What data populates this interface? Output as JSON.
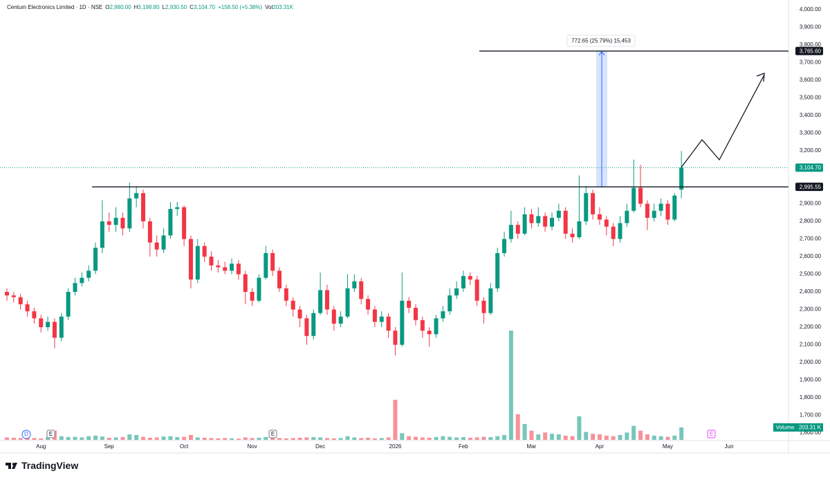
{
  "chart_data": {
    "type": "candlestick",
    "title": "Centum Electronics Limited · 1D · NSE",
    "ohlc_legend": [
      {
        "name": "O",
        "value": 2980,
        "label": "2,980.00"
      },
      {
        "name": "H",
        "value": 3198.8,
        "label": "3,198.80"
      },
      {
        "name": "L",
        "value": 2930.5,
        "label": "2,930.50"
      },
      {
        "name": "C",
        "value": 3104.7,
        "label": "3,104.70"
      }
    ],
    "change": {
      "value": 158.5,
      "label": "+158.50 (+5.38%)"
    },
    "volume_legend": {
      "name": "Vol",
      "value": 203.31,
      "label": "203.31K"
    },
    "volume_badge": {
      "name": "Volume",
      "value": 203.31,
      "label": "203.31 K"
    },
    "last_price": {
      "value": 3104.7,
      "label": "3,104.70"
    },
    "hlines": [
      {
        "value": 3765.6,
        "label": "3,765.60"
      },
      {
        "value": 2995.55,
        "label": "2,995.55"
      }
    ],
    "measure_label": "772.65 (25.79%) 15,453",
    "markers": [
      "D",
      "E",
      "E",
      "E"
    ],
    "brand": "TradingView",
    "up_color": "#089981",
    "down_color": "#f23645",
    "ylim": [
      1557,
      4055
    ],
    "yticks": [
      {
        "value": 4000,
        "label": "4,000.00"
      },
      {
        "value": 3900,
        "label": "3,900.00"
      },
      {
        "value": 3800,
        "label": "3,800.00"
      },
      {
        "value": 3700,
        "label": "3,700.00"
      },
      {
        "value": 3600,
        "label": "3,600.00"
      },
      {
        "value": 3500,
        "label": "3,500.00"
      },
      {
        "value": 3400,
        "label": "3,400.00"
      },
      {
        "value": 3300,
        "label": "3,300.00"
      },
      {
        "value": 3200,
        "label": "3,200.00"
      },
      {
        "value": 3100,
        "label": "3,100.00"
      },
      {
        "value": 3000,
        "label": "3,000.00"
      },
      {
        "value": 2900,
        "label": "2,900.00"
      },
      {
        "value": 2800,
        "label": "2,800.00"
      },
      {
        "value": 2700,
        "label": "2,700.00"
      },
      {
        "value": 2600,
        "label": "2,600.00"
      },
      {
        "value": 2500,
        "label": "2,500.00"
      },
      {
        "value": 2400,
        "label": "2,400.00"
      },
      {
        "value": 2300,
        "label": "2,300.00"
      },
      {
        "value": 2200,
        "label": "2,200.00"
      },
      {
        "value": 2100,
        "label": "2,100.00"
      },
      {
        "value": 2000,
        "label": "2,000.00"
      },
      {
        "value": 1900,
        "label": "1,900.00"
      },
      {
        "value": 1800,
        "label": "1,800.00"
      },
      {
        "value": 1700,
        "label": "1,700.00"
      },
      {
        "value": 1600,
        "label": "1,600.00"
      }
    ],
    "categories": [
      null,
      null,
      null,
      null,
      null,
      "Aug",
      null,
      null,
      null,
      null,
      null,
      null,
      null,
      null,
      null,
      "Sep",
      null,
      null,
      null,
      null,
      null,
      null,
      null,
      null,
      null,
      null,
      "Oct",
      null,
      null,
      null,
      null,
      null,
      null,
      null,
      null,
      null,
      "Nov",
      null,
      null,
      null,
      null,
      null,
      null,
      null,
      null,
      null,
      "Dec",
      null,
      null,
      null,
      null,
      null,
      null,
      null,
      null,
      null,
      null,
      "2026",
      null,
      null,
      null,
      null,
      null,
      null,
      null,
      null,
      null,
      "Feb",
      null,
      null,
      null,
      null,
      null,
      null,
      null,
      null,
      null,
      "Mar",
      null,
      null,
      null,
      null,
      null,
      null,
      null,
      null,
      null,
      "Apr",
      null,
      null,
      null,
      null,
      null,
      null,
      null,
      null,
      null,
      "May",
      null,
      null,
      null,
      null,
      null,
      null,
      null,
      null,
      "Jun",
      null
    ],
    "open": [
      2400,
      2380,
      2370,
      2330,
      2290,
      2250,
      2200,
      2230,
      2140,
      2260,
      2400,
      2450,
      2480,
      2520,
      2650,
      2800,
      2780,
      2820,
      2760,
      2930,
      2960,
      2800,
      2680,
      2640,
      2720,
      2870,
      2880,
      2700,
      2470,
      2660,
      2600,
      2550,
      2540,
      2520,
      2560,
      2500,
      2400,
      2350,
      2480,
      2620,
      2520,
      2420,
      2350,
      2300,
      2250,
      2150,
      2280,
      2410,
      2300,
      2220,
      2260,
      2420,
      2460,
      2360,
      2300,
      2230,
      2260,
      2180,
      2100,
      2350,
      2310,
      2240,
      2180,
      2160,
      2250,
      2290,
      2380,
      2420,
      2490,
      2470,
      2350,
      2280,
      2420,
      2620,
      2700,
      2780,
      2730,
      2840,
      2790,
      2830,
      2770,
      2820,
      2860,
      2730,
      2710,
      2800,
      2960,
      2840,
      2810,
      2770,
      2700,
      2790,
      2860,
      2990,
      2900,
      2820,
      2860,
      2900,
      2810,
      2980,
      null,
      null,
      null,
      null,
      null,
      null,
      null,
      null
    ],
    "high": [
      2420,
      2400,
      2390,
      2350,
      2310,
      2270,
      2260,
      2250,
      2280,
      2420,
      2480,
      2510,
      2550,
      2680,
      2920,
      2850,
      2880,
      2850,
      3020,
      3000,
      2980,
      2820,
      2720,
      2760,
      2910,
      2910,
      2890,
      2720,
      2700,
      2680,
      2630,
      2580,
      2570,
      2590,
      2580,
      2520,
      2420,
      2500,
      2660,
      2640,
      2540,
      2440,
      2370,
      2320,
      2270,
      2300,
      2510,
      2440,
      2320,
      2290,
      2500,
      2500,
      2480,
      2380,
      2320,
      2290,
      2280,
      2200,
      2510,
      2370,
      2330,
      2260,
      2200,
      2270,
      2320,
      2420,
      2460,
      2520,
      2510,
      2490,
      2370,
      2450,
      2650,
      2740,
      2860,
      2800,
      2880,
      2870,
      2880,
      2850,
      2850,
      2900,
      2880,
      2760,
      3060,
      3000,
      2980,
      2880,
      2830,
      2790,
      2830,
      2900,
      3150,
      3120,
      2920,
      2900,
      2930,
      2920,
      2960,
      3198.8,
      null,
      null,
      null,
      null,
      null,
      null,
      null,
      null
    ],
    "low": [
      2350,
      2340,
      2300,
      2260,
      2220,
      2170,
      2180,
      2080,
      2120,
      2240,
      2380,
      2430,
      2460,
      2500,
      2620,
      2740,
      2740,
      2720,
      2740,
      2880,
      2760,
      2600,
      2600,
      2620,
      2700,
      2830,
      2660,
      2420,
      2450,
      2570,
      2520,
      2510,
      2500,
      2500,
      2470,
      2330,
      2320,
      2340,
      2470,
      2490,
      2400,
      2320,
      2260,
      2200,
      2100,
      2130,
      2270,
      2270,
      2180,
      2200,
      2250,
      2400,
      2330,
      2270,
      2200,
      2200,
      2140,
      2040,
      2090,
      2280,
      2210,
      2140,
      2090,
      2140,
      2230,
      2270,
      2360,
      2400,
      2440,
      2320,
      2220,
      2270,
      2400,
      2600,
      2680,
      2700,
      2720,
      2760,
      2770,
      2740,
      2750,
      2800,
      2700,
      2680,
      2700,
      2780,
      2810,
      2780,
      2720,
      2660,
      2680,
      2770,
      2850,
      2880,
      2750,
      2800,
      2830,
      2780,
      2800,
      2930.5,
      null,
      null,
      null,
      null,
      null,
      null,
      null,
      null
    ],
    "close": [
      2380,
      2370,
      2330,
      2290,
      2250,
      2200,
      2230,
      2140,
      2260,
      2400,
      2450,
      2480,
      2520,
      2650,
      2800,
      2780,
      2820,
      2760,
      2930,
      2960,
      2800,
      2680,
      2640,
      2720,
      2870,
      2880,
      2700,
      2470,
      2660,
      2600,
      2550,
      2540,
      2520,
      2560,
      2500,
      2400,
      2350,
      2480,
      2620,
      2520,
      2420,
      2350,
      2300,
      2250,
      2150,
      2280,
      2410,
      2300,
      2220,
      2260,
      2420,
      2460,
      2360,
      2300,
      2230,
      2260,
      2180,
      2100,
      2350,
      2310,
      2240,
      2180,
      2160,
      2250,
      2290,
      2380,
      2420,
      2490,
      2470,
      2350,
      2280,
      2420,
      2620,
      2700,
      2780,
      2730,
      2840,
      2790,
      2830,
      2770,
      2820,
      2860,
      2730,
      2710,
      2800,
      2960,
      2840,
      2810,
      2770,
      2700,
      2790,
      2860,
      2990,
      2900,
      2820,
      2860,
      2900,
      2810,
      2946.2,
      3104.7,
      null,
      null,
      null,
      null,
      null,
      null,
      null,
      null
    ],
    "volume": [
      40,
      35,
      30,
      45,
      30,
      25,
      40,
      150,
      60,
      45,
      50,
      40,
      60,
      70,
      55,
      35,
      40,
      45,
      90,
      80,
      50,
      35,
      40,
      55,
      60,
      45,
      50,
      80,
      40,
      35,
      30,
      25,
      30,
      25,
      20,
      40,
      30,
      35,
      45,
      40,
      30,
      25,
      30,
      35,
      40,
      45,
      40,
      30,
      25,
      30,
      60,
      40,
      30,
      35,
      25,
      30,
      40,
      655,
      110,
      60,
      50,
      40,
      35,
      45,
      60,
      50,
      40,
      45,
      35,
      40,
      50,
      45,
      60,
      80,
      1785,
      420,
      260,
      150,
      90,
      120,
      100,
      90,
      70,
      60,
      385,
      130,
      100,
      90,
      70,
      60,
      80,
      120,
      230,
      150,
      90,
      70,
      60,
      50,
      70,
      203.31,
      null,
      null,
      null,
      null,
      null,
      null,
      null,
      null
    ]
  }
}
